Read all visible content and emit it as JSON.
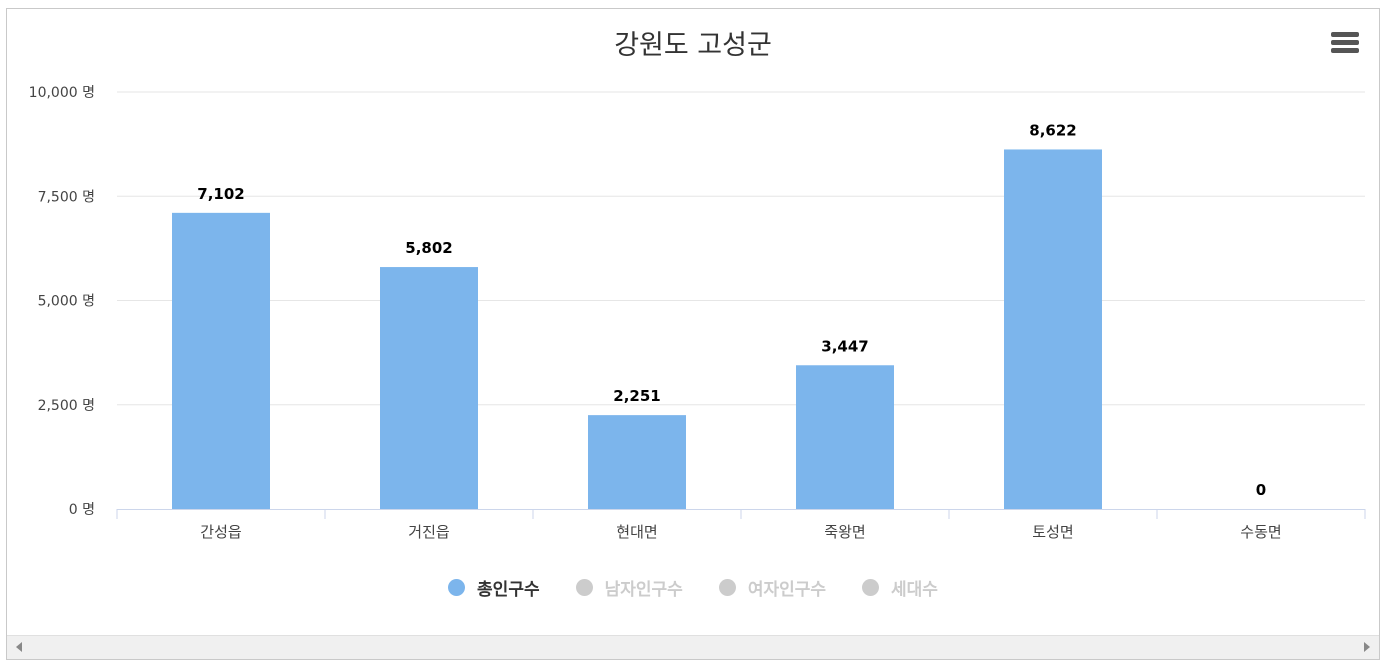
{
  "chart_data": {
    "type": "bar",
    "title": "강원도 고성군",
    "categories": [
      "간성읍",
      "거진읍",
      "현대면",
      "죽왕면",
      "토성면",
      "수동면"
    ],
    "series": [
      {
        "name": "총인구수",
        "values": [
          7102,
          5802,
          2251,
          3447,
          8622,
          0
        ],
        "color": "#7cb5ec"
      }
    ],
    "value_labels": [
      "7,102",
      "5,802",
      "2,251",
      "3,447",
      "8,622",
      "0"
    ],
    "ylim": [
      0,
      10000
    ],
    "yticks": [
      0,
      2500,
      5000,
      7500,
      10000
    ],
    "ytick_labels": [
      "0 명",
      "2,500 명",
      "5,000 명",
      "7,500 명",
      "10,000 명"
    ],
    "grid": true,
    "legend_position": "bottom-center"
  },
  "legend": {
    "items": [
      {
        "label": "총인구수",
        "active": true,
        "color": "#7cb5ec"
      },
      {
        "label": "남자인구수",
        "active": false,
        "color": "#cccccc"
      },
      {
        "label": "여자인구수",
        "active": false,
        "color": "#cccccc"
      },
      {
        "label": "세대수",
        "active": false,
        "color": "#cccccc"
      }
    ]
  },
  "colors": {
    "active_text": "#333333",
    "inactive_text": "#cccccc",
    "grid": "#e6e6e6",
    "axis": "#ccd6eb"
  },
  "icons": {
    "menu": "hamburger-menu-icon",
    "scroll_left": "arrow-left-icon",
    "scroll_right": "arrow-right-icon"
  }
}
